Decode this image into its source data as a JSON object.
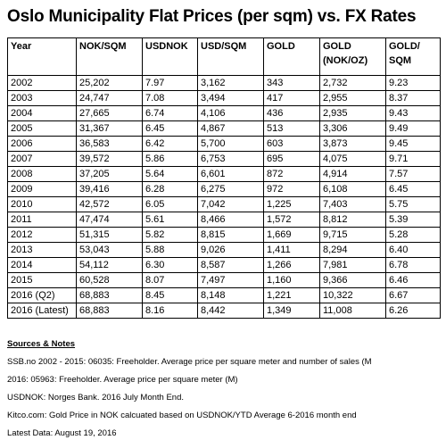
{
  "title": "Oslo Municipality Flat Prices (per sqm) vs. FX Rates",
  "table": {
    "headers": [
      {
        "line1": "Year",
        "line2": ""
      },
      {
        "line1": "NOK/SQM",
        "line2": ""
      },
      {
        "line1": "USDNOK",
        "line2": ""
      },
      {
        "line1": "USD/SQM",
        "line2": ""
      },
      {
        "line1": "GOLD",
        "line2": ""
      },
      {
        "line1": "GOLD",
        "line2": "(NOK/OZ)"
      },
      {
        "line1": "GOLD/",
        "line2": "SQM"
      }
    ],
    "rows": [
      [
        "2002",
        "25,202",
        "7.97",
        "3,162",
        "343",
        "2,732",
        "9.23"
      ],
      [
        "2003",
        "24,747",
        "7.08",
        "3,494",
        "417",
        "2,955",
        "8.37"
      ],
      [
        "2004",
        "27,665",
        "6.74",
        "4,106",
        "436",
        "2,935",
        "9.43"
      ],
      [
        "2005",
        "31,367",
        "6.45",
        "4,867",
        "513",
        "3,306",
        "9.49"
      ],
      [
        "2006",
        "36,583",
        "6.42",
        "5,700",
        "603",
        "3,873",
        "9.45"
      ],
      [
        "2007",
        "39,572",
        "5.86",
        "6,753",
        "695",
        "4,075",
        "9.71"
      ],
      [
        "2008",
        "37,205",
        "5.64",
        "6,601",
        "872",
        "4,914",
        "7.57"
      ],
      [
        "2009",
        "39,416",
        "6.28",
        "6,275",
        "972",
        "6,108",
        "6.45"
      ],
      [
        "2010",
        "42,572",
        "6.05",
        "7,042",
        "1,225",
        "7,403",
        "5.75"
      ],
      [
        "2011",
        "47,474",
        "5.61",
        "8,466",
        "1,572",
        "8,812",
        "5.39"
      ],
      [
        "2012",
        "51,315",
        "5.82",
        "8,815",
        "1,669",
        "9,715",
        "5.28"
      ],
      [
        "2013",
        "53,043",
        "5.88",
        "9,026",
        "1,411",
        "8,294",
        "6.40"
      ],
      [
        "2014",
        "54,112",
        "6.30",
        "8,587",
        "1,266",
        "7,981",
        "6.78"
      ],
      [
        "2015",
        "60,528",
        "8.07",
        "7,497",
        "1,160",
        "9,366",
        "6.46"
      ],
      [
        "2016 (Q2)",
        "68,883",
        "8.45",
        "8,148",
        "1,221",
        "10,322",
        "6.67"
      ],
      [
        "2016 (Latest)",
        "68,883",
        "8.16",
        "8,442",
        "1,349",
        "11,008",
        "6.26"
      ]
    ]
  },
  "notes": {
    "heading": "Sources & Notes",
    "lines": [
      "SSB.no 2002 - 2015: 06035: Freeholder. Average price per square meter and number of sales (M",
      "2016: 05963: Freeholder. Average price per square meter (M)",
      "USDNOK: Norges Bank. 2016 July Month End.",
      "Kitco.com: Gold Price in NOK calcuated based on USDNOK/YTD Average 6-2016 month end",
      "Latest Data: August 19, 2016"
    ]
  }
}
